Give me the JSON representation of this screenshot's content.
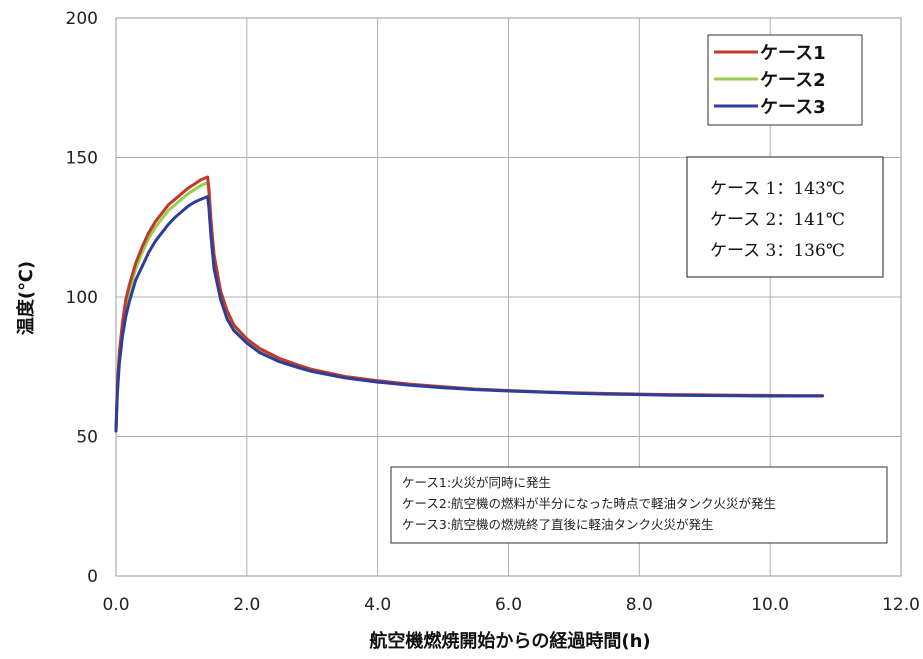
{
  "chart_data": {
    "type": "line",
    "title": "",
    "xlabel": "航空機燃焼開始からの経過時間(h)",
    "ylabel": "温度(℃)",
    "xlim": [
      0,
      12
    ],
    "ylim": [
      0,
      200
    ],
    "xticks": [
      "0.0",
      "2.0",
      "4.0",
      "6.0",
      "8.0",
      "10.0",
      "12.0"
    ],
    "yticks": [
      "0",
      "50",
      "100",
      "150",
      "200"
    ],
    "grid": true,
    "legend_position": "top-right",
    "series": [
      {
        "name": "ケース1",
        "color": "#c0392b",
        "x": [
          0,
          0.02,
          0.05,
          0.1,
          0.15,
          0.2,
          0.3,
          0.4,
          0.5,
          0.6,
          0.7,
          0.8,
          0.9,
          1.0,
          1.1,
          1.2,
          1.3,
          1.4,
          1.42,
          1.45,
          1.5,
          1.6,
          1.7,
          1.8,
          2.0,
          2.2,
          2.5,
          2.8,
          3.0,
          3.5,
          4.0,
          4.5,
          5.0,
          5.5,
          6.0,
          6.5,
          7.0,
          7.5,
          8.0,
          8.5,
          9.0,
          9.5,
          10.0,
          10.5,
          10.8
        ],
        "y": [
          52,
          68,
          80,
          91,
          99,
          104,
          112,
          118,
          123,
          127,
          130,
          133,
          135,
          137,
          139,
          140.5,
          142,
          143,
          139,
          128,
          115,
          102,
          95,
          90,
          85,
          81.5,
          78,
          75.5,
          74,
          71.5,
          70,
          68.7,
          67.8,
          67,
          66.5,
          66,
          65.7,
          65.4,
          65.2,
          65,
          64.9,
          64.8,
          64.7,
          64.6,
          64.6
        ]
      },
      {
        "name": "ケース2",
        "color": "#9acd4a",
        "x": [
          0,
          0.02,
          0.05,
          0.1,
          0.15,
          0.2,
          0.3,
          0.4,
          0.5,
          0.6,
          0.7,
          0.8,
          0.9,
          1.0,
          1.1,
          1.2,
          1.3,
          1.4,
          1.42,
          1.45,
          1.5,
          1.6,
          1.7,
          1.8,
          2.0,
          2.2,
          2.5,
          2.8,
          3.0,
          3.5,
          4.0,
          4.5,
          5.0,
          5.5,
          6.0,
          6.5,
          7.0,
          7.5,
          8.0,
          8.5,
          9.0,
          9.5,
          10.0,
          10.5,
          10.8
        ],
        "y": [
          52,
          67,
          78,
          89,
          97,
          102,
          110,
          116,
          121,
          125,
          128,
          131,
          133,
          135,
          137,
          138.5,
          140,
          141,
          137,
          126,
          113,
          101,
          94,
          89,
          84.5,
          81,
          77.5,
          75.2,
          73.8,
          71.3,
          69.8,
          68.6,
          67.7,
          66.9,
          66.4,
          66,
          65.6,
          65.3,
          65.1,
          64.9,
          64.8,
          64.7,
          64.6,
          64.6,
          64.6
        ]
      },
      {
        "name": "ケース3",
        "color": "#2c3e99",
        "x": [
          0,
          0.02,
          0.05,
          0.1,
          0.15,
          0.2,
          0.3,
          0.4,
          0.5,
          0.6,
          0.7,
          0.8,
          0.9,
          1.0,
          1.1,
          1.2,
          1.3,
          1.4,
          1.42,
          1.45,
          1.5,
          1.6,
          1.7,
          1.8,
          2.0,
          2.2,
          2.5,
          2.8,
          3.0,
          3.5,
          4.0,
          4.5,
          5.0,
          5.5,
          6.0,
          6.5,
          7.0,
          7.5,
          8.0,
          8.5,
          9.0,
          9.5,
          10.0,
          10.5,
          10.8
        ],
        "y": [
          52,
          65,
          76,
          86,
          93,
          98,
          106,
          111,
          116,
          120,
          123,
          126,
          128.5,
          130.5,
          132.5,
          134,
          135,
          136,
          132,
          122,
          110,
          99,
          92,
          88,
          83.5,
          80,
          76.8,
          74.6,
          73.3,
          71,
          69.5,
          68.4,
          67.5,
          66.8,
          66.3,
          65.9,
          65.5,
          65.2,
          65,
          64.8,
          64.7,
          64.6,
          64.5,
          64.5,
          64.5
        ]
      }
    ],
    "annotation_box": [
      "ケース 1：143℃",
      "ケース 2：141℃",
      "ケース 3：136℃"
    ],
    "notes": [
      "ケース1:火災が同時に発生",
      "ケース2:航空機の燃料が半分になった時点で軽油タンク火災が発生",
      "ケース3:航空機の燃焼終了直後に軽油タンク火災が発生"
    ]
  }
}
